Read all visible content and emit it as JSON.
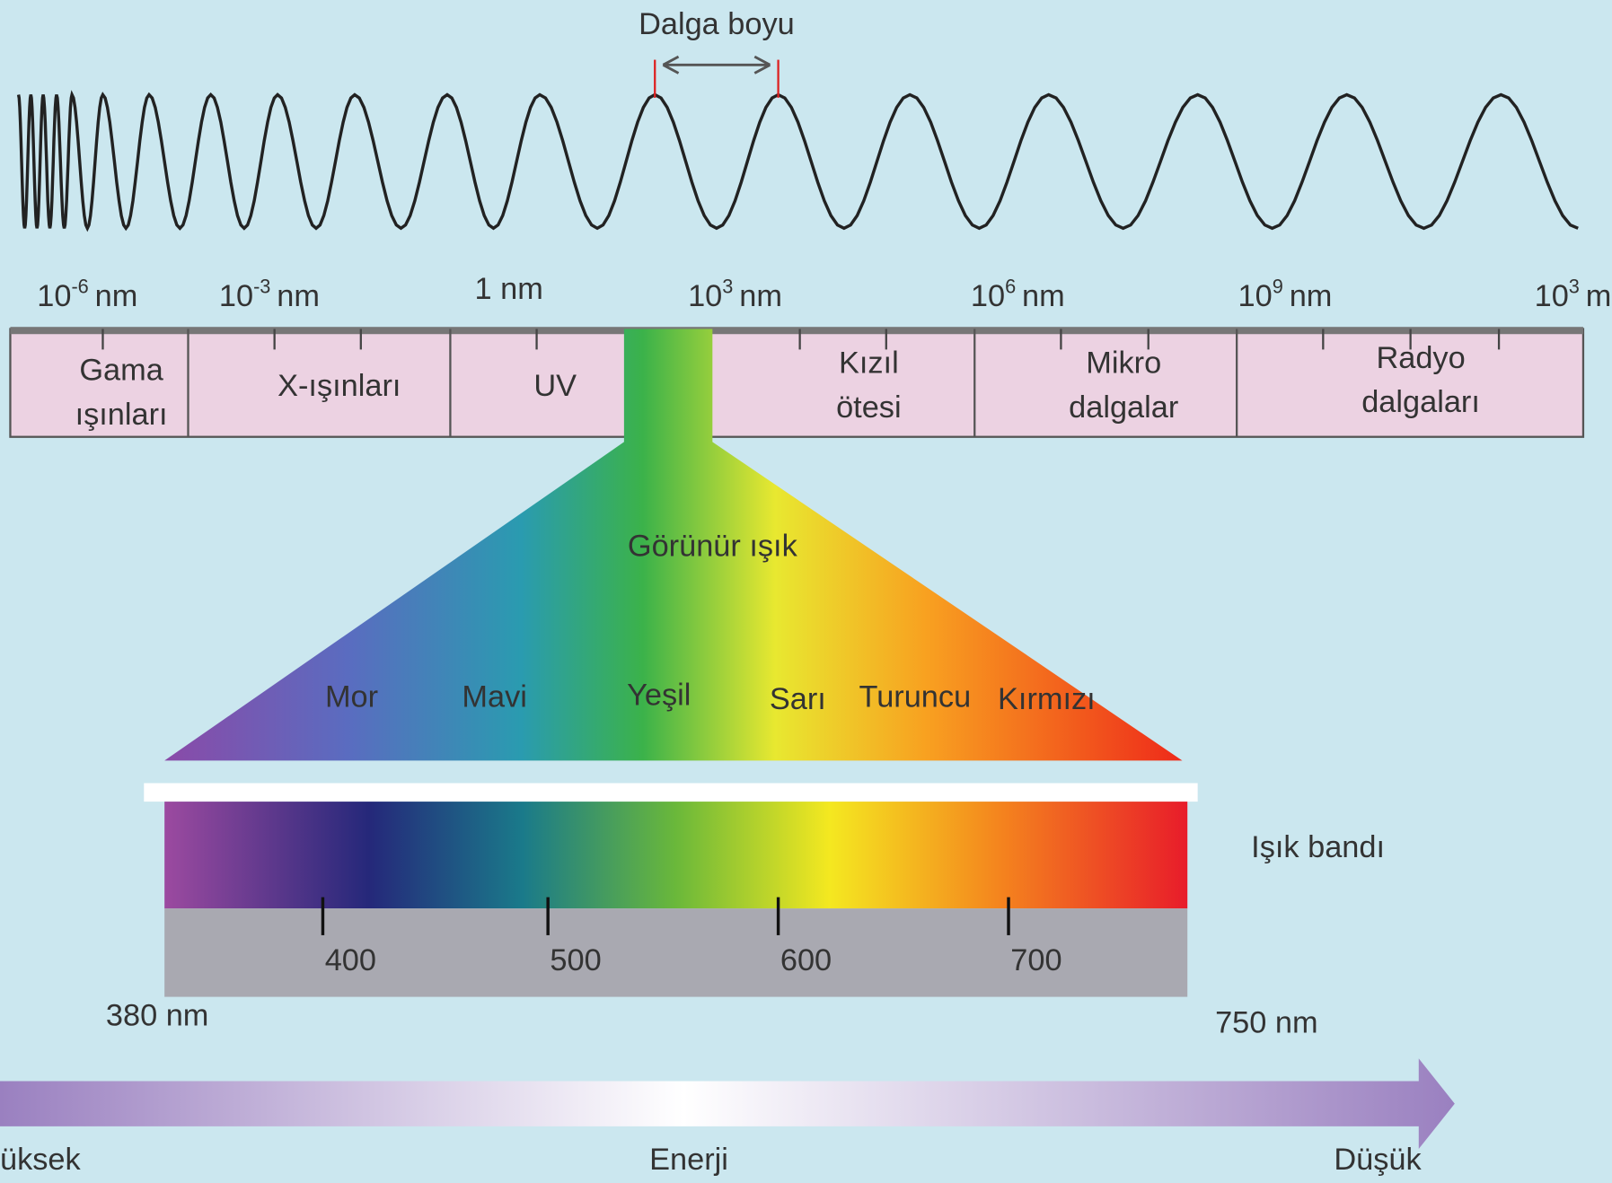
{
  "wave_label": "Dalga boyu",
  "scale": [
    {
      "base": "10",
      "exp": "-6",
      "unit": "nm"
    },
    {
      "base": "10",
      "exp": "-3",
      "unit": "nm"
    },
    {
      "base": "1 nm"
    },
    {
      "base": "10",
      "exp": "3",
      "unit": "nm"
    },
    {
      "base": "10",
      "exp": "6",
      "unit": "nm"
    },
    {
      "base": "10",
      "exp": "9",
      "unit": "nm"
    },
    {
      "base": "10",
      "exp": "3",
      "unit": "m"
    }
  ],
  "regions": [
    {
      "lines": [
        "Gama",
        "ışınları"
      ]
    },
    {
      "lines": [
        "X-ışınları"
      ]
    },
    {
      "lines": [
        "UV"
      ]
    },
    {
      "lines": [
        "Kızıl",
        "ötesi"
      ]
    },
    {
      "lines": [
        "Mikro",
        "dalgalar"
      ]
    },
    {
      "lines": [
        "Radyo",
        "dalgaları"
      ]
    }
  ],
  "visible": {
    "title": "Görünür ışık",
    "colors": [
      "Mor",
      "Mavi",
      "Yeşil",
      "Sarı",
      "Turuncu",
      "Kırmızı"
    ]
  },
  "band": {
    "title": "Işık bandı",
    "ticks": [
      "400",
      "500",
      "600",
      "700"
    ],
    "start": "380 nm",
    "end": "750 nm"
  },
  "energy": {
    "high": "üksek",
    "label": "Enerji",
    "low": "Düşük"
  }
}
